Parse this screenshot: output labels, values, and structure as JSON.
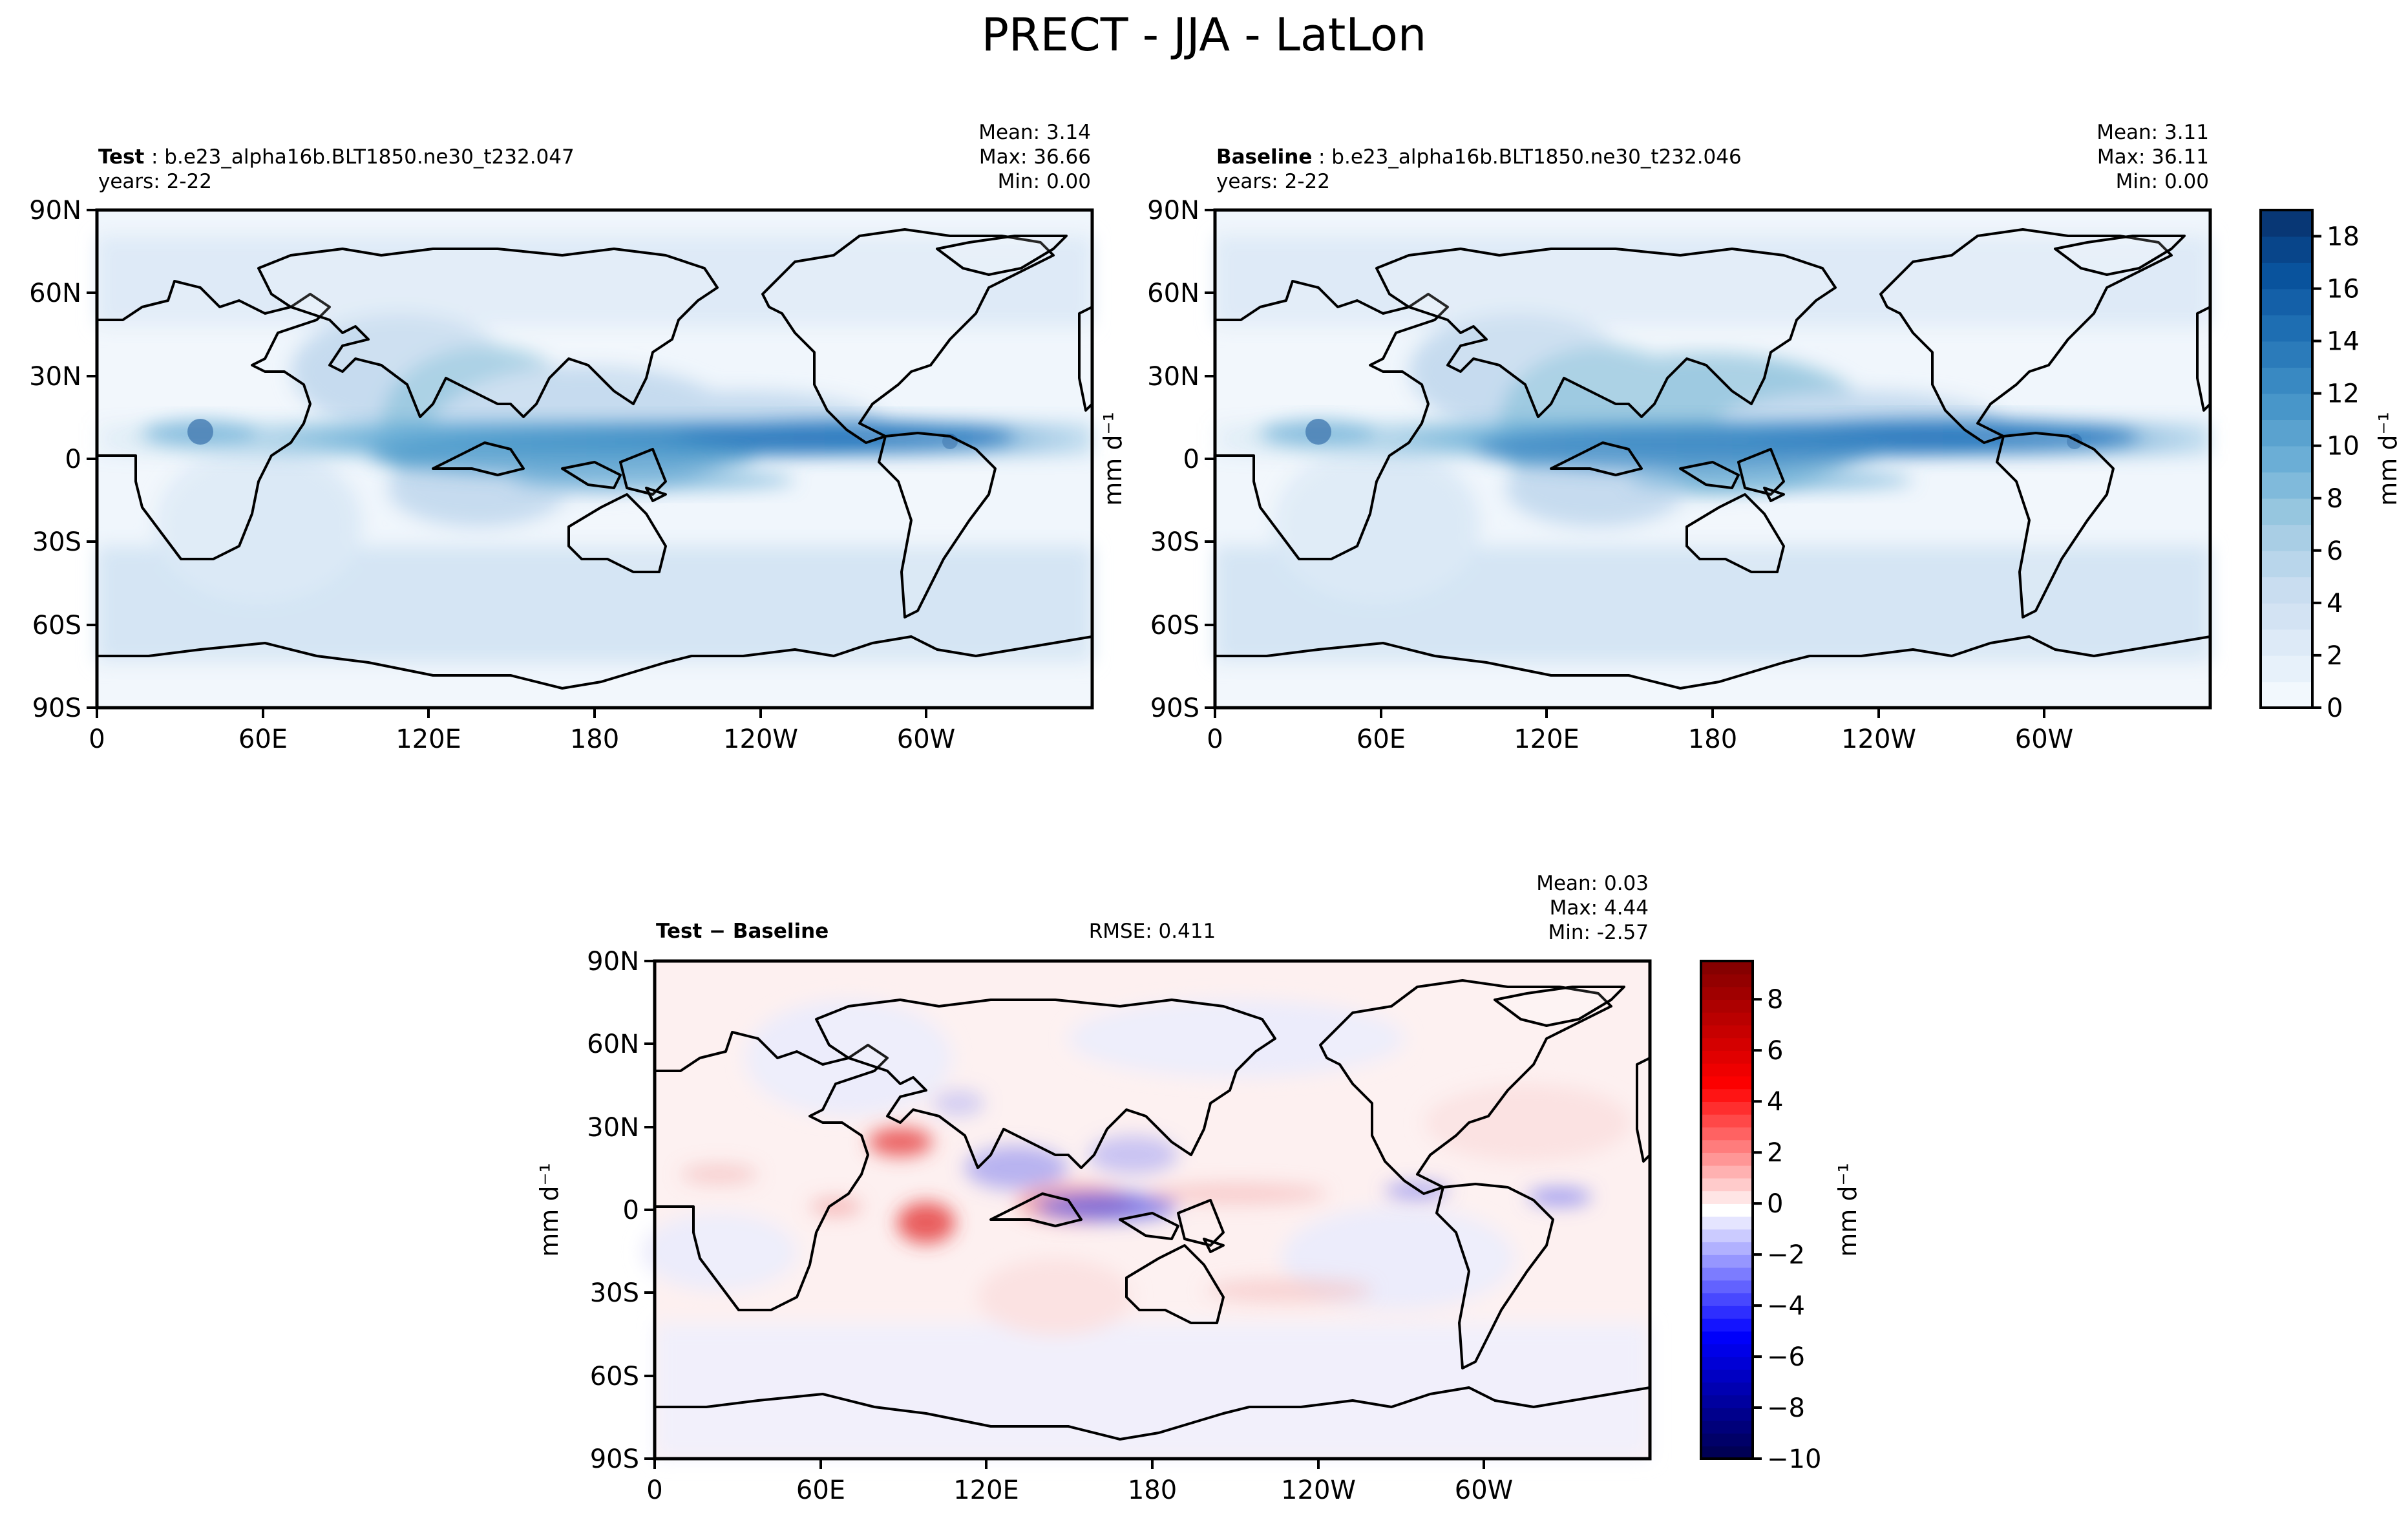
{
  "figure": {
    "title": "PRECT - JJA - LatLon"
  },
  "chart_data": [
    {
      "type": "heatmap",
      "name": "test",
      "title_bold": "Test",
      "title_rest": ": b.e23_alpha16b.BLT1850.ne30_t232.047",
      "subtitle": "years: 2-22",
      "stats": {
        "mean": "Mean:  3.14",
        "max": "Max: 36.66",
        "min": "Min:  0.00"
      },
      "rmse": "",
      "xticks": [
        "0",
        "60E",
        "120E",
        "180",
        "120W",
        "60W"
      ],
      "yticks": [
        "90N",
        "60N",
        "30N",
        "0",
        "30S",
        "60S",
        "90S"
      ],
      "ylabel": "",
      "colormap": "Blues",
      "colorbar_label": ""
    },
    {
      "type": "heatmap",
      "name": "baseline",
      "title_bold": "Baseline",
      "title_rest": ": b.e23_alpha16b.BLT1850.ne30_t232.046",
      "subtitle": "years: 2-22",
      "stats": {
        "mean": "Mean:  3.11",
        "max": "Max: 36.11",
        "min": "Min:  0.00"
      },
      "rmse": "",
      "xticks": [
        "0",
        "60E",
        "120E",
        "180",
        "120W",
        "60W"
      ],
      "yticks": [
        "90N",
        "60N",
        "30N",
        "0",
        "30S",
        "60S",
        "90S"
      ],
      "ylabel": "mm d⁻¹",
      "colormap": "Blues",
      "colorbar_label": "mm d⁻¹",
      "colorbar_ticks": [
        "0",
        "2",
        "4",
        "6",
        "8",
        "10",
        "12",
        "14",
        "16",
        "18"
      ],
      "colorbar_range": [
        0,
        19
      ]
    },
    {
      "type": "heatmap",
      "name": "difference",
      "title_bold": "Test − Baseline",
      "title_rest": "",
      "subtitle": "",
      "stats": {
        "mean": "Mean:  0.03",
        "max": "Max:  4.44",
        "min": "Min: -2.57"
      },
      "rmse": "RMSE: 0.411",
      "xticks": [
        "0",
        "60E",
        "120E",
        "180",
        "120W",
        "60W"
      ],
      "yticks": [
        "90N",
        "60N",
        "30N",
        "0",
        "30S",
        "60S",
        "90S"
      ],
      "ylabel": "mm d⁻¹",
      "colormap": "seismic",
      "colorbar_label": "mm d⁻¹",
      "colorbar_ticks": [
        "−10",
        "−8",
        "−6",
        "−4",
        "−2",
        "0",
        "2",
        "4",
        "6",
        "8"
      ],
      "colorbar_range": [
        -10,
        9.5
      ]
    }
  ]
}
